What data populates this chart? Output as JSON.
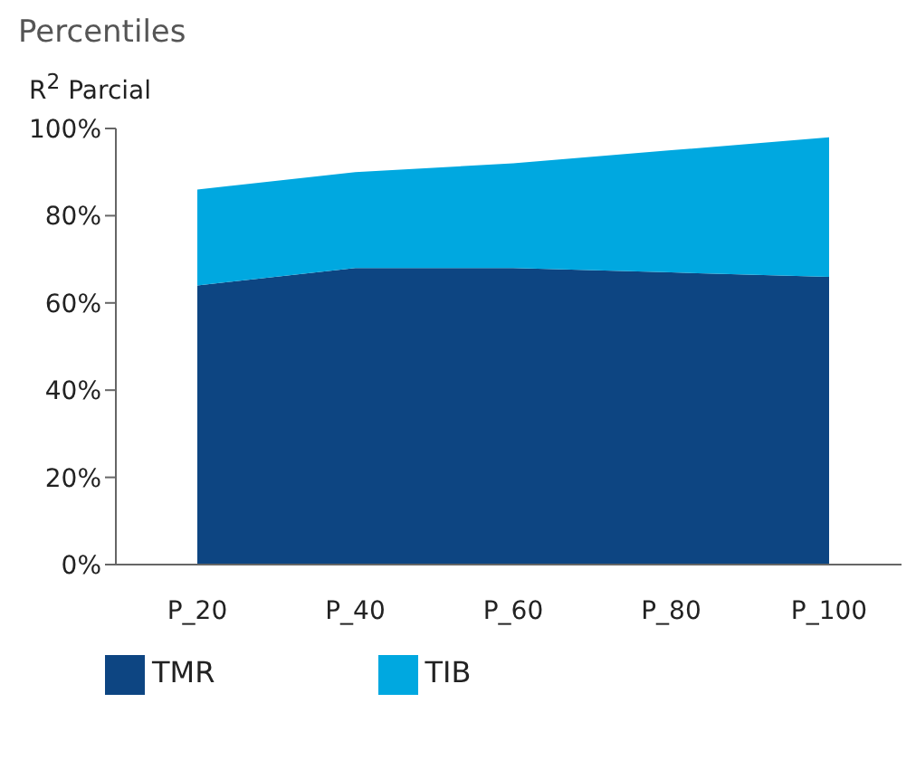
{
  "chart_data": {
    "type": "area",
    "title": "Percentiles",
    "ylabel": "R$^{2}$ Parcial",
    "stacked": true,
    "categories": [
      "P_20",
      "P_40",
      "P_60",
      "P_80",
      "P_100"
    ],
    "series": [
      {
        "name": "TMR",
        "color": "#0d4582",
        "values": [
          64,
          68,
          68,
          67,
          66
        ]
      },
      {
        "name": "TIB",
        "color": "#00a8e0",
        "values": [
          22,
          22,
          24,
          28,
          32
        ]
      }
    ],
    "ylim": [
      0,
      100
    ],
    "yticks": [
      {
        "value": 0,
        "label": "0%"
      },
      {
        "value": 20,
        "label": "20%"
      },
      {
        "value": 40,
        "label": "40%"
      },
      {
        "value": 60,
        "label": "60%"
      },
      {
        "value": 80,
        "label": "80%"
      },
      {
        "value": 100,
        "label": "100%"
      }
    ],
    "grid": false,
    "legend": "bottom"
  }
}
